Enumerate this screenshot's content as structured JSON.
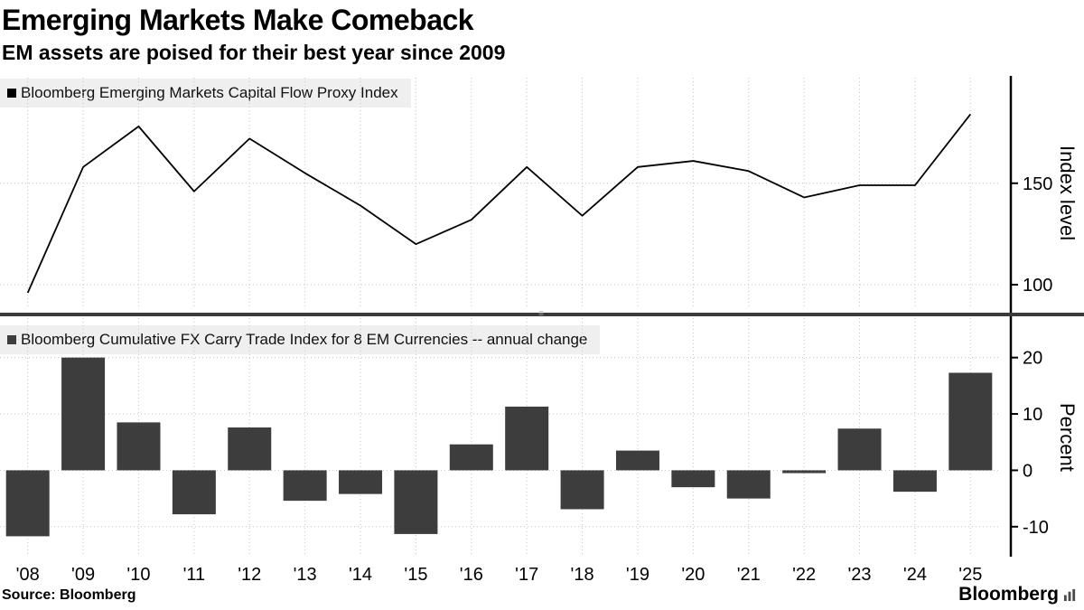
{
  "header": {
    "title": "Emerging Markets Make Comeback",
    "subtitle": "EM assets are poised for their best year since 2009"
  },
  "footer": {
    "source": "Source: Bloomberg",
    "brand": "Bloomberg"
  },
  "chart_data": [
    {
      "type": "line",
      "legend_label": "Bloomberg Emerging Markets Capital Flow Proxy Index",
      "legend_marker_color": "#000000",
      "ylabel": "Index level",
      "ylim": [
        88,
        202
      ],
      "yticks": [
        100,
        150
      ],
      "grid": true,
      "grid_color": "#c6c6c6",
      "line_color": "#000000",
      "legend_position": "top-left",
      "categories": [
        "'08",
        "'09",
        "'10",
        "'11",
        "'12",
        "'13",
        "'14",
        "'15",
        "'16",
        "'17",
        "'18",
        "'19",
        "'20",
        "'21",
        "'22",
        "'23",
        "'24",
        "'25"
      ],
      "values": [
        96,
        158,
        178,
        146,
        172,
        155,
        139,
        120,
        132,
        158,
        134,
        158,
        161,
        156,
        143,
        149,
        149,
        184
      ]
    },
    {
      "type": "bar",
      "legend_label": "Bloomberg Cumulative FX Carry Trade Index for 8 EM Currencies -- annual change",
      "legend_marker_color": "#3d3d3d",
      "ylabel": "Percent",
      "ylim": [
        -15,
        27
      ],
      "yticks": [
        -10,
        0,
        10,
        20
      ],
      "grid": true,
      "grid_color": "#c6c6c6",
      "bar_color": "#3d3d3d",
      "categories": [
        "'08",
        "'09",
        "'10",
        "'11",
        "'12",
        "'13",
        "'14",
        "'15",
        "'16",
        "'17",
        "'18",
        "'19",
        "'20",
        "'21",
        "'22",
        "'23",
        "'24",
        "'25"
      ],
      "values": [
        -11.7,
        20,
        8.5,
        -7.8,
        7.6,
        -5.4,
        -4.2,
        -11.3,
        4.6,
        11.3,
        -6.9,
        3.5,
        -3,
        -5,
        -0.5,
        7.4,
        -3.8,
        17.3
      ]
    }
  ]
}
